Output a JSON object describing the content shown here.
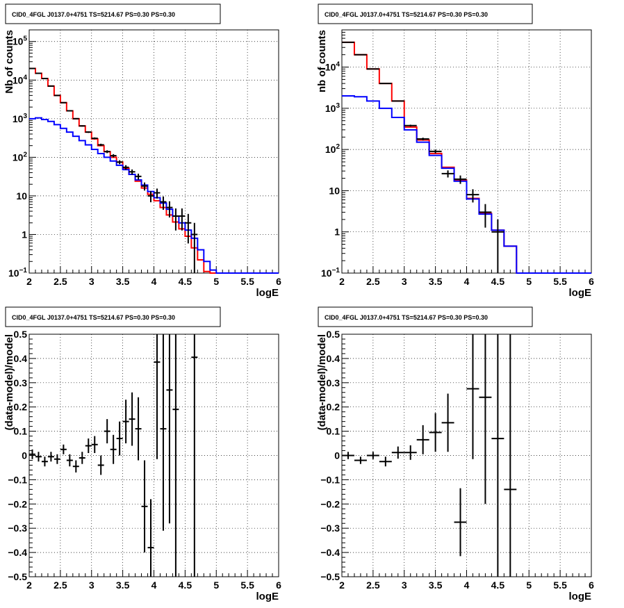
{
  "chart_data": [
    {
      "panel": "top-left",
      "type": "line",
      "title": "CID0_4FGL J0137.0+4751 TS=5214.67 PS=0.30 PS=0.30",
      "xlabel": "logE",
      "ylabel": "Nb of counts",
      "xlim": [
        2,
        6
      ],
      "ylim": [
        0.1,
        200000
      ],
      "yscale": "log",
      "grid": true,
      "x_ticks": [
        "2",
        "2.5",
        "3",
        "3.5",
        "4",
        "4.5",
        "5",
        "5.5",
        "6"
      ],
      "y_ticks": [
        {
          "v": 0.1,
          "label": "10",
          "sup": "−1"
        },
        {
          "v": 1,
          "label": "1",
          "sup": ""
        },
        {
          "v": 10,
          "label": "10",
          "sup": ""
        },
        {
          "v": 100,
          "label": "10",
          "sup": "2"
        },
        {
          "v": 1000,
          "label": "10",
          "sup": "3"
        },
        {
          "v": 10000,
          "label": "10",
          "sup": "4"
        },
        {
          "v": 100000,
          "label": "10",
          "sup": "5"
        }
      ],
      "bin_edges": [
        2.0,
        2.1,
        2.2,
        2.3,
        2.4,
        2.5,
        2.6,
        2.7,
        2.8,
        2.9,
        3.0,
        3.1,
        3.2,
        3.3,
        3.4,
        3.5,
        3.6,
        3.7,
        3.8,
        3.9,
        4.0,
        4.1,
        4.2,
        4.3,
        4.4,
        4.5,
        4.6,
        4.7,
        4.8,
        4.9,
        5.0,
        5.1,
        5.2,
        5.3,
        5.4,
        5.5,
        5.6,
        5.7,
        5.8,
        5.9,
        6.0
      ],
      "series": [
        {
          "name": "",
          "color": "#ff0000",
          "kind": "step",
          "values": [
            20000,
            15000,
            11000,
            7000,
            4000,
            2600,
            1600,
            1000,
            650,
            450,
            300,
            200,
            140,
            100,
            75,
            52,
            36,
            24,
            16,
            11,
            7.5,
            5,
            3.2,
            2.1,
            1.4,
            0.9,
            0.45,
            0.22,
            0.11,
            0.1,
            0.1,
            0.1,
            0.1,
            0.1,
            0.1,
            0.1,
            0.1,
            0.1,
            0.1,
            0.1
          ]
        },
        {
          "name": "",
          "color": "#0000ff",
          "kind": "step",
          "values": [
            1000,
            1050,
            950,
            850,
            700,
            560,
            450,
            350,
            270,
            210,
            160,
            125,
            100,
            80,
            62,
            48,
            36,
            26,
            19,
            13,
            9,
            6.5,
            4.5,
            3,
            2,
            1.3,
            0.8,
            0.4,
            0.2,
            0.12,
            0.1,
            0.1,
            0.1,
            0.1,
            0.1,
            0.1,
            0.1,
            0.1,
            0.1,
            0.1
          ]
        },
        {
          "name": "",
          "color": "#000000",
          "kind": "points",
          "values": [
            20000,
            15000,
            11000,
            7000,
            4000,
            2600,
            1600,
            1000,
            650,
            450,
            310,
            210,
            140,
            110,
            75,
            55,
            42,
            32,
            18,
            10,
            12,
            7,
            5,
            3,
            3,
            2,
            1,
            0,
            0,
            0,
            0,
            0,
            0,
            0,
            0,
            0,
            0,
            0,
            0,
            0
          ]
        }
      ]
    },
    {
      "panel": "top-right",
      "type": "line",
      "title": "CID0_4FGL J0137.0+4751 TS=5214.67 PS=0.30 PS=0.30",
      "xlabel": "logE",
      "ylabel": "nb of counts",
      "xlim": [
        2,
        6
      ],
      "ylim": [
        0.1,
        80000
      ],
      "yscale": "log",
      "grid": true,
      "x_ticks": [
        "2",
        "2.5",
        "3",
        "3.5",
        "4",
        "4.5",
        "5",
        "5.5",
        "6"
      ],
      "y_ticks": [
        {
          "v": 0.1,
          "label": "10",
          "sup": "−1"
        },
        {
          "v": 1,
          "label": "1",
          "sup": ""
        },
        {
          "v": 10,
          "label": "10",
          "sup": ""
        },
        {
          "v": 100,
          "label": "10",
          "sup": "2"
        },
        {
          "v": 1000,
          "label": "10",
          "sup": "3"
        },
        {
          "v": 10000,
          "label": "10",
          "sup": "4"
        }
      ],
      "bin_edges": [
        2.0,
        2.2,
        2.4,
        2.6,
        2.8,
        3.0,
        3.2,
        3.4,
        3.6,
        3.8,
        4.0,
        4.2,
        4.4,
        4.6,
        4.8,
        5.0,
        5.2,
        5.4,
        5.6,
        5.8,
        6.0
      ],
      "series": [
        {
          "name": "",
          "color": "#ff0000",
          "kind": "step",
          "values": [
            40000,
            20000,
            9000,
            4000,
            1500,
            350,
            170,
            80,
            37,
            18,
            6.5,
            2.8,
            1.1,
            0.45,
            0.1,
            0.1,
            0.1,
            0.1,
            0.1,
            0.1
          ]
        },
        {
          "name": "",
          "color": "#0000ff",
          "kind": "step",
          "values": [
            2000,
            1900,
            1500,
            1000,
            600,
            300,
            150,
            72,
            35,
            17,
            6.3,
            2.7,
            1.1,
            0.45,
            0.1,
            0.1,
            0.1,
            0.1,
            0.1,
            0.1
          ]
        },
        {
          "name": "",
          "color": "#000000",
          "kind": "points",
          "values": [
            40000,
            20000,
            9000,
            4000,
            1500,
            380,
            180,
            90,
            26,
            19,
            8,
            3,
            1,
            0,
            0,
            0,
            0,
            0,
            0,
            0
          ]
        }
      ]
    },
    {
      "panel": "bottom-left",
      "type": "scatter",
      "title": "CID0_4FGL J0137.0+4751 TS=5214.67 PS=0.30 PS=0.30",
      "xlabel": "logE",
      "ylabel": "(data-model)/model",
      "xlim": [
        2,
        6
      ],
      "ylim": [
        -0.5,
        0.5
      ],
      "grid": true,
      "x_ticks": [
        "2",
        "2.5",
        "3",
        "3.5",
        "4",
        "4.5",
        "5",
        "5.5",
        "6"
      ],
      "y_ticks": [
        "−0.5",
        "−0.4",
        "−0.3",
        "−0.2",
        "−0.1",
        "0",
        "0.1",
        "0.2",
        "0.3",
        "0.4",
        "0.5"
      ],
      "points": [
        {
          "x": 2.05,
          "y": 0.005,
          "err": 0.02
        },
        {
          "x": 2.15,
          "y": -0.005,
          "err": 0.02
        },
        {
          "x": 2.25,
          "y": -0.025,
          "err": 0.02
        },
        {
          "x": 2.35,
          "y": -0.005,
          "err": 0.02
        },
        {
          "x": 2.45,
          "y": -0.015,
          "err": 0.02
        },
        {
          "x": 2.55,
          "y": 0.025,
          "err": 0.02
        },
        {
          "x": 2.65,
          "y": -0.02,
          "err": 0.025
        },
        {
          "x": 2.75,
          "y": -0.045,
          "err": 0.025
        },
        {
          "x": 2.85,
          "y": -0.01,
          "err": 0.025
        },
        {
          "x": 2.95,
          "y": 0.04,
          "err": 0.03
        },
        {
          "x": 3.05,
          "y": 0.045,
          "err": 0.035
        },
        {
          "x": 3.15,
          "y": -0.04,
          "err": 0.04
        },
        {
          "x": 3.25,
          "y": 0.1,
          "err": 0.05
        },
        {
          "x": 3.35,
          "y": 0.025,
          "err": 0.06
        },
        {
          "x": 3.45,
          "y": 0.07,
          "err": 0.07
        },
        {
          "x": 3.55,
          "y": 0.14,
          "err": 0.09
        },
        {
          "x": 3.65,
          "y": 0.15,
          "err": 0.11
        },
        {
          "x": 3.75,
          "y": 0.11,
          "err": 0.13
        },
        {
          "x": 3.85,
          "y": -0.21,
          "err": 0.19
        },
        {
          "x": 3.95,
          "y": -0.38,
          "err": 0.2
        },
        {
          "x": 4.05,
          "y": 0.385,
          "err": 0.4
        },
        {
          "x": 4.15,
          "y": 0.11,
          "err": 0.42
        },
        {
          "x": 4.25,
          "y": 0.27,
          "err": 0.55
        },
        {
          "x": 4.35,
          "y": 0.19,
          "err": 0.8
        },
        {
          "x": 4.65,
          "y": 0.405,
          "err": 1.5
        }
      ]
    },
    {
      "panel": "bottom-right",
      "type": "scatter",
      "title": "CID0_4FGL J0137.0+4751 TS=5214.67 PS=0.30 PS=0.30",
      "xlabel": "logE",
      "ylabel": "(data-model)/model",
      "xlim": [
        2,
        6
      ],
      "ylim": [
        -0.5,
        0.5
      ],
      "grid": true,
      "x_ticks": [
        "2",
        "2.5",
        "3",
        "3.5",
        "4",
        "4.5",
        "5",
        "5.5",
        "6"
      ],
      "y_ticks": [
        "−0.5",
        "−0.4",
        "−0.3",
        "−0.2",
        "−0.1",
        "0",
        "0.1",
        "0.2",
        "0.3",
        "0.4",
        "0.5"
      ],
      "points": [
        {
          "x": 2.1,
          "y": 0.0,
          "err": 0.015
        },
        {
          "x": 2.3,
          "y": -0.02,
          "err": 0.015
        },
        {
          "x": 2.5,
          "y": 0.0,
          "err": 0.015
        },
        {
          "x": 2.7,
          "y": -0.025,
          "err": 0.02
        },
        {
          "x": 2.9,
          "y": 0.012,
          "err": 0.025
        },
        {
          "x": 3.1,
          "y": 0.012,
          "err": 0.03
        },
        {
          "x": 3.3,
          "y": 0.065,
          "err": 0.06
        },
        {
          "x": 3.5,
          "y": 0.095,
          "err": 0.08
        },
        {
          "x": 3.7,
          "y": 0.135,
          "err": 0.12
        },
        {
          "x": 3.9,
          "y": -0.275,
          "err": 0.14
        },
        {
          "x": 4.1,
          "y": 0.275,
          "err": 0.29
        },
        {
          "x": 4.3,
          "y": 0.24,
          "err": 0.44
        },
        {
          "x": 4.5,
          "y": 0.07,
          "err": 1.0
        },
        {
          "x": 4.7,
          "y": -0.14,
          "err": 1.0
        }
      ]
    }
  ]
}
